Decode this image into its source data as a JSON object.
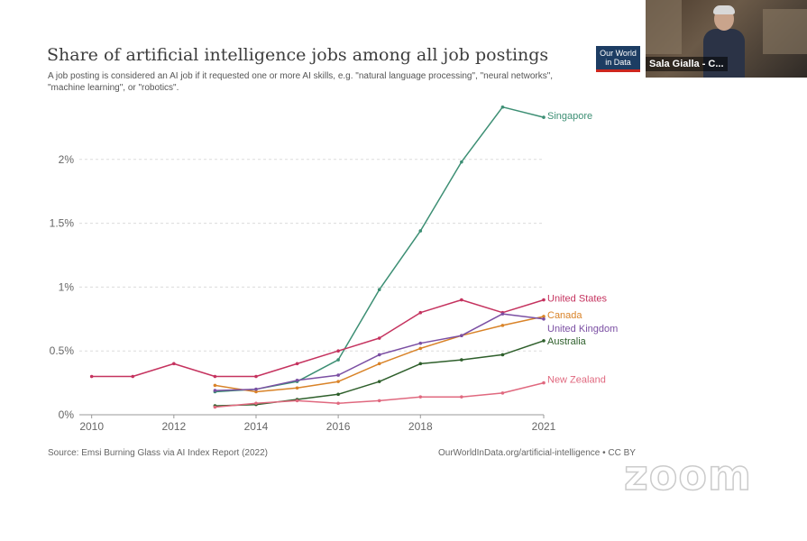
{
  "header": {
    "title": "Share of artificial intelligence jobs among all job postings",
    "subtitle": "A job posting is considered an AI job if it requested one or more AI skills, e.g. \"natural language processing\", \"neural networks\", \"machine learning\", or \"robotics\"."
  },
  "logo": {
    "line1": "Our World",
    "line2": "in Data"
  },
  "video": {
    "participant_name": "Sala Gialla - C..."
  },
  "footer": {
    "source": "Source: Emsi Burning Glass via AI Index Report (2022)",
    "url": "OurWorldInData.org/artificial-intelligence • CC BY"
  },
  "watermark": "zoom",
  "chart_data": {
    "type": "line",
    "title": "Share of artificial intelligence jobs among all job postings",
    "xlim": [
      2009.7,
      2021
    ],
    "ylim": [
      0,
      2.5
    ],
    "x_ticks": [
      {
        "value": 2010,
        "label": "2010"
      },
      {
        "value": 2012,
        "label": "2012"
      },
      {
        "value": 2014,
        "label": "2014"
      },
      {
        "value": 2016,
        "label": "2016"
      },
      {
        "value": 2018,
        "label": "2018"
      },
      {
        "value": 2021,
        "label": "2021"
      }
    ],
    "y_ticks": [
      {
        "value": 0,
        "label": "0%"
      },
      {
        "value": 0.5,
        "label": "0.5%"
      },
      {
        "value": 1,
        "label": "1%"
      },
      {
        "value": 1.5,
        "label": "1.5%"
      },
      {
        "value": 2,
        "label": "2%"
      }
    ],
    "grid": "horizontal dashed",
    "legend": "labels at line ends (right)",
    "series": [
      {
        "name": "Singapore",
        "color": "#3d8f74",
        "x": [
          2013,
          2014,
          2015,
          2016,
          2017,
          2018,
          2019,
          2020,
          2021
        ],
        "y": [
          0.18,
          0.2,
          0.26,
          0.43,
          0.98,
          1.44,
          1.98,
          2.41,
          2.33
        ]
      },
      {
        "name": "United States",
        "color": "#c5335f",
        "x": [
          2010,
          2011,
          2012,
          2013,
          2014,
          2015,
          2016,
          2017,
          2018,
          2019,
          2020,
          2021
        ],
        "y": [
          0.3,
          0.3,
          0.4,
          0.3,
          0.3,
          0.4,
          0.5,
          0.6,
          0.8,
          0.9,
          0.8,
          0.9
        ]
      },
      {
        "name": "Canada",
        "color": "#d98328",
        "x": [
          2013,
          2014,
          2015,
          2016,
          2017,
          2018,
          2019,
          2020,
          2021
        ],
        "y": [
          0.23,
          0.18,
          0.21,
          0.26,
          0.4,
          0.52,
          0.62,
          0.7,
          0.77
        ]
      },
      {
        "name": "United Kingdom",
        "color": "#7b4fa3",
        "x": [
          2013,
          2014,
          2015,
          2016,
          2017,
          2018,
          2019,
          2020,
          2021
        ],
        "y": [
          0.19,
          0.2,
          0.27,
          0.31,
          0.47,
          0.56,
          0.62,
          0.79,
          0.75
        ]
      },
      {
        "name": "Australia",
        "color": "#2e5f2b",
        "x": [
          2013,
          2014,
          2015,
          2016,
          2017,
          2018,
          2019,
          2020,
          2021
        ],
        "y": [
          0.07,
          0.08,
          0.12,
          0.16,
          0.26,
          0.4,
          0.43,
          0.47,
          0.58
        ]
      },
      {
        "name": "New Zealand",
        "color": "#e0697f",
        "x": [
          2013,
          2014,
          2015,
          2016,
          2017,
          2018,
          2019,
          2020,
          2021
        ],
        "y": [
          0.06,
          0.09,
          0.11,
          0.09,
          0.11,
          0.14,
          0.14,
          0.17,
          0.25
        ]
      }
    ]
  }
}
